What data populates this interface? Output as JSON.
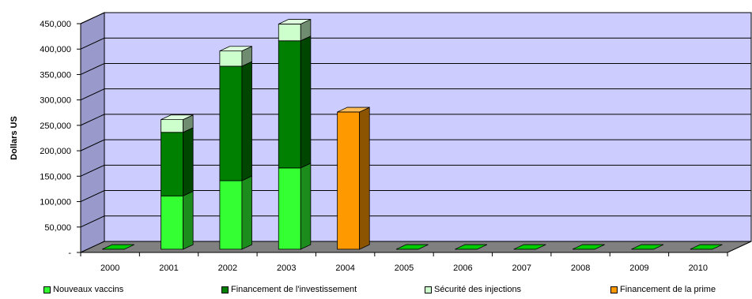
{
  "chart_data": {
    "type": "bar",
    "stacked": true,
    "categories": [
      "2000",
      "2001",
      "2002",
      "2003",
      "2004",
      "2005",
      "2006",
      "2007",
      "2008",
      "2009",
      "2010"
    ],
    "series": [
      {
        "name": "Nouveaux vaccins",
        "color": "#33ff33",
        "values": [
          0,
          105000,
          135000,
          160000,
          0,
          0,
          0,
          0,
          0,
          0,
          0
        ]
      },
      {
        "name": "Financement de l'investissement",
        "color": "#008000",
        "values": [
          0,
          125000,
          225000,
          250000,
          0,
          0,
          0,
          0,
          0,
          0,
          0
        ]
      },
      {
        "name": "Sécurité des injections",
        "color": "#ccffcc",
        "values": [
          0,
          25000,
          30000,
          33000,
          0,
          0,
          0,
          0,
          0,
          0,
          0
        ]
      },
      {
        "name": "Financement de la prime",
        "color": "#ff9900",
        "values": [
          0,
          0,
          0,
          0,
          270000,
          0,
          0,
          0,
          0,
          0,
          0
        ]
      }
    ],
    "ylabel": "Dollars US",
    "xlabel": "",
    "title": "",
    "ylim": [
      0,
      450000
    ],
    "yticks": [
      {
        "v": 0,
        "label": "-"
      },
      {
        "v": 50000,
        "label": "50,000"
      },
      {
        "v": 100000,
        "label": "100,000"
      },
      {
        "v": 150000,
        "label": "150,000"
      },
      {
        "v": 200000,
        "label": "200,000"
      },
      {
        "v": 250000,
        "label": "250,000"
      },
      {
        "v": 300000,
        "label": "300,000"
      },
      {
        "v": 350000,
        "label": "350,000"
      },
      {
        "v": 400000,
        "label": "400,000"
      },
      {
        "v": 450000,
        "label": "450,000"
      }
    ],
    "grid": true,
    "plot_background": "#ccccff",
    "legend_position": "bottom"
  }
}
